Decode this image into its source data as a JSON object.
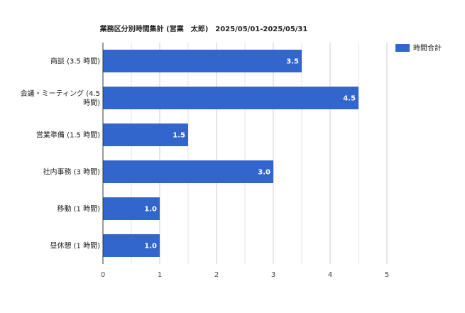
{
  "chart_data": {
    "type": "bar",
    "orientation": "horizontal",
    "title": "業務区分別時間集計 (営業　太郎)　2025/05/01-2025/05/31",
    "categories": [
      [
        "商談 (3.5 時間)"
      ],
      [
        "会議・ミーティング (4.5",
        "時間)"
      ],
      [
        "営業準備 (1.5 時間)"
      ],
      [
        "社内事務 (3 時間)"
      ],
      [
        "移動 (1 時間)"
      ],
      [
        "昼休憩 (1 時間)"
      ]
    ],
    "series": [
      {
        "name": "時間合計",
        "values": [
          3.5,
          4.5,
          1.5,
          3.0,
          1.0,
          1.0
        ],
        "data_labels": [
          "3.5",
          "4.5",
          "1.5",
          "3.0",
          "1.0",
          "1.0"
        ],
        "color": "#3366cc"
      }
    ],
    "xlim": [
      0,
      5
    ],
    "x_ticks": [
      "0",
      "1",
      "2",
      "3",
      "4",
      "5"
    ],
    "grid": true,
    "legend_position": "top-right"
  }
}
